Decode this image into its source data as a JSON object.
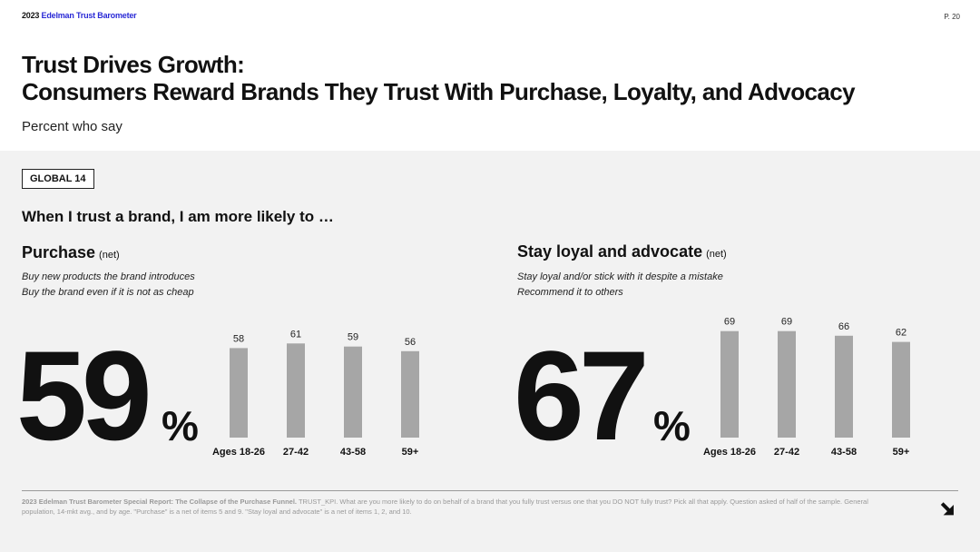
{
  "header": {
    "year": "2023",
    "brand": "Edelman Trust Barometer",
    "page": "P. 20"
  },
  "title_line1": "Trust Drives Growth:",
  "title_line2": "Consumers Reward Brands They Trust With Purchase, Loyalty, and Advocacy",
  "subtitle": "Percent who say",
  "badge": "GLOBAL 14",
  "question": "When I trust a brand, I am more likely to …",
  "left": {
    "title": "Purchase",
    "net": "(net)",
    "desc1": "Buy new products the brand introduces",
    "desc2": "Buy the brand even if it is not as cheap",
    "big_value": "59",
    "pct_sign": "%"
  },
  "right": {
    "title": "Stay loyal and advocate",
    "net": "(net)",
    "desc1": "Stay loyal and/or stick with it despite a mistake",
    "desc2": "Recommend it to others",
    "big_value": "67",
    "pct_sign": "%"
  },
  "chart_data": [
    {
      "type": "bar",
      "categories": [
        "Ages 18-26",
        "27-42",
        "43-58",
        "59+"
      ],
      "values": [
        58,
        61,
        59,
        56
      ],
      "ylim": [
        0,
        100
      ],
      "bar_color": "#a6a6a6"
    },
    {
      "type": "bar",
      "categories": [
        "Ages 18-26",
        "27-42",
        "43-58",
        "59+"
      ],
      "values": [
        69,
        69,
        66,
        62
      ],
      "ylim": [
        0,
        100
      ],
      "bar_color": "#a6a6a6"
    }
  ],
  "footnote": {
    "bold": "2023 Edelman Trust Barometer Special Report: The Collapse of the Purchase Funnel.",
    "text": " TRUST_KPI. What are you more likely to do on behalf of a brand that you fully trust versus one that you DO NOT fully trust? Pick all that apply. Question asked of half of the sample. General population, 14-mkt avg., and by age. \"Purchase\" is a net of items 5 and 9. \"Stay loyal and advocate\" is a net of items 1, 2, and 10."
  },
  "colors": {
    "accent": "#2a2ad6",
    "panel": "#f2f2f2",
    "bar": "#a6a6a6"
  }
}
